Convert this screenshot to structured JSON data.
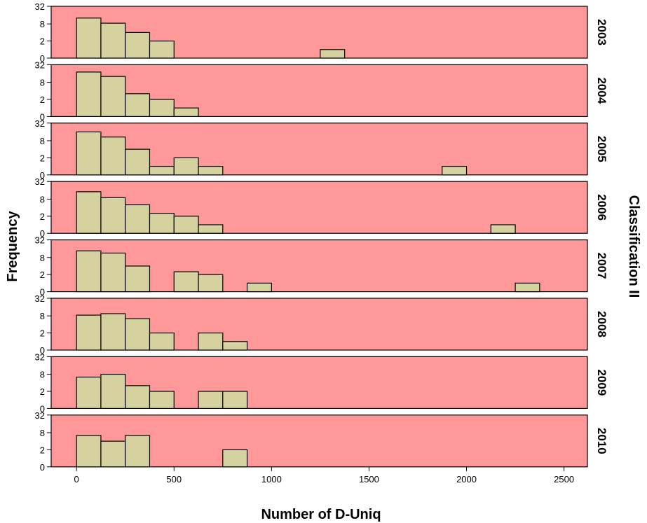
{
  "chart_data": {
    "type": "bar",
    "subtype": "faceted histogram",
    "xlabel": "Number of D-Uniq",
    "ylabel": "Frequency",
    "facet_label": "Classification II",
    "x_ticks": [
      "0",
      "500",
      "1000",
      "1500",
      "2000",
      "2500"
    ],
    "x_tick_values": [
      0,
      500,
      1000,
      1500,
      2000,
      2500
    ],
    "xlim": [
      -130,
      2620
    ],
    "y_ticks": [
      "0",
      "2",
      "8",
      "32"
    ],
    "y_tick_values": [
      0,
      2,
      8,
      32
    ],
    "y_scale": "compressed (non-linear)",
    "bin_width": 125,
    "grid": false,
    "colors": {
      "panel_background": "#ff9999",
      "bar_fill": "#d6d2a0",
      "bar_edge": "#000000"
    },
    "panels": [
      {
        "label": "2003",
        "bins": [
          {
            "x0": 0,
            "count": 16
          },
          {
            "x0": 125,
            "count": 9
          },
          {
            "x0": 250,
            "count": 5
          },
          {
            "x0": 375,
            "count": 2
          },
          {
            "x0": 1250,
            "count": 1
          }
        ]
      },
      {
        "label": "2004",
        "bins": [
          {
            "x0": 0,
            "count": 22
          },
          {
            "x0": 125,
            "count": 16
          },
          {
            "x0": 250,
            "count": 4
          },
          {
            "x0": 375,
            "count": 2
          },
          {
            "x0": 500,
            "count": 1
          }
        ]
      },
      {
        "label": "2005",
        "bins": [
          {
            "x0": 0,
            "count": 20
          },
          {
            "x0": 125,
            "count": 13
          },
          {
            "x0": 250,
            "count": 5
          },
          {
            "x0": 375,
            "count": 1
          },
          {
            "x0": 500,
            "count": 2
          },
          {
            "x0": 625,
            "count": 1
          },
          {
            "x0": 1875,
            "count": 1
          }
        ]
      },
      {
        "label": "2006",
        "bins": [
          {
            "x0": 0,
            "count": 18
          },
          {
            "x0": 125,
            "count": 10
          },
          {
            "x0": 250,
            "count": 6
          },
          {
            "x0": 375,
            "count": 3
          },
          {
            "x0": 500,
            "count": 2
          },
          {
            "x0": 625,
            "count": 1
          },
          {
            "x0": 2125,
            "count": 1
          }
        ]
      },
      {
        "label": "2007",
        "bins": [
          {
            "x0": 0,
            "count": 17
          },
          {
            "x0": 125,
            "count": 14
          },
          {
            "x0": 250,
            "count": 5
          },
          {
            "x0": 500,
            "count": 3
          },
          {
            "x0": 625,
            "count": 2
          },
          {
            "x0": 875,
            "count": 1
          },
          {
            "x0": 2250,
            "count": 1
          }
        ]
      },
      {
        "label": "2008",
        "bins": [
          {
            "x0": 0,
            "count": 9
          },
          {
            "x0": 125,
            "count": 11
          },
          {
            "x0": 250,
            "count": 7
          },
          {
            "x0": 375,
            "count": 2
          },
          {
            "x0": 625,
            "count": 2
          },
          {
            "x0": 750,
            "count": 1
          }
        ]
      },
      {
        "label": "2009",
        "bins": [
          {
            "x0": 0,
            "count": 7
          },
          {
            "x0": 125,
            "count": 8
          },
          {
            "x0": 250,
            "count": 4
          },
          {
            "x0": 375,
            "count": 2
          },
          {
            "x0": 625,
            "count": 2
          },
          {
            "x0": 750,
            "count": 2
          }
        ]
      },
      {
        "label": "2010",
        "bins": [
          {
            "x0": 0,
            "count": 7
          },
          {
            "x0": 125,
            "count": 5
          },
          {
            "x0": 250,
            "count": 7
          },
          {
            "x0": 750,
            "count": 2
          }
        ]
      }
    ]
  }
}
